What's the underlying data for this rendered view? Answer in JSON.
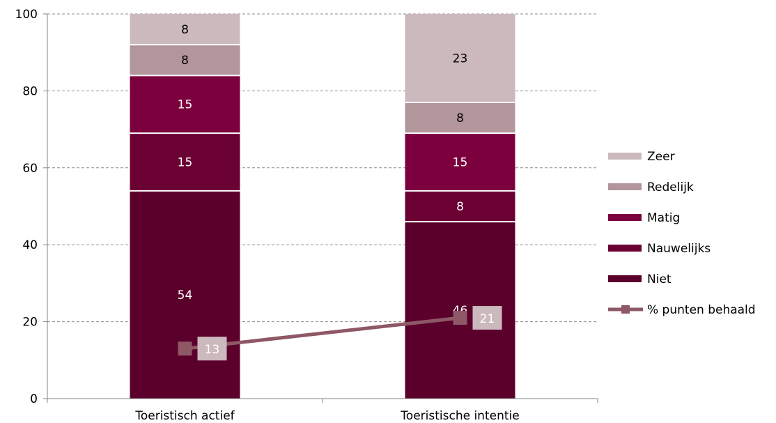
{
  "chart_data": {
    "type": "bar",
    "stacked": true,
    "categories": [
      "Toeristisch actief",
      "Toeristische intentie"
    ],
    "series": [
      {
        "name": "Niet",
        "values": [
          54,
          46
        ],
        "color": "#5a002b",
        "label_color": "#ffffff"
      },
      {
        "name": "Nauwelijks",
        "values": [
          15,
          8
        ],
        "color": "#6b0033",
        "label_color": "#ffffff"
      },
      {
        "name": "Matig",
        "values": [
          15,
          15
        ],
        "color": "#7c003d",
        "label_color": "#ffffff"
      },
      {
        "name": "Redelijk",
        "values": [
          8,
          8
        ],
        "color": "#b3959c",
        "label_color": "#000000"
      },
      {
        "name": "Zeer",
        "values": [
          8,
          23
        ],
        "color": "#cbb9bd",
        "label_color": "#000000"
      }
    ],
    "line_series": {
      "name": "% punten behaald",
      "values": [
        13,
        21
      ],
      "color": "#8e5866",
      "label_bg": "#cbb9bd"
    },
    "ylim": [
      0,
      100
    ],
    "yticks": [
      0,
      20,
      40,
      60,
      80,
      100
    ],
    "grid": true,
    "legend_position": "right",
    "title": "",
    "xlabel": "",
    "ylabel": ""
  }
}
